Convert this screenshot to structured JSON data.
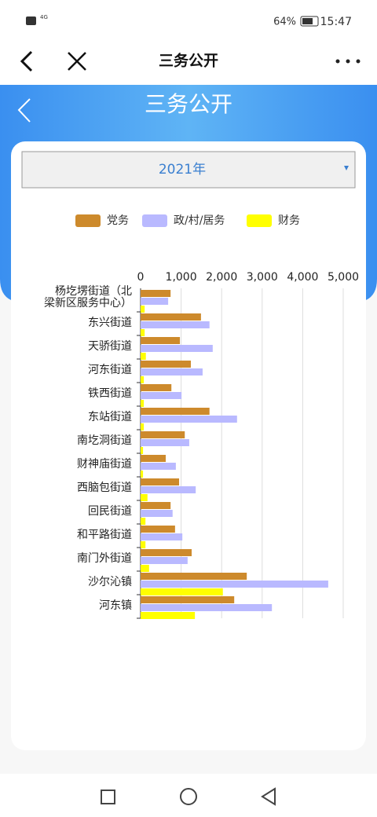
{
  "status_bar": {
    "network": "4G",
    "battery": "64%",
    "time": "15:47"
  },
  "nav_bar": {
    "title": "三务公开"
  },
  "header": {
    "title": "三务公开"
  },
  "select": {
    "value": "2021年"
  },
  "chart_data": {
    "type": "barh",
    "categories": [
      "杨圪塄街道（北梁新区服务中心）",
      "东兴街道",
      "天骄街道",
      "河东街道",
      "铁西街道",
      "东站街道",
      "南圪洞街道",
      "财神庙街道",
      "西脑包街道",
      "回民街道",
      "和平路街道",
      "南门外街道",
      "沙尔沁镇",
      "河东镇"
    ],
    "series": [
      {
        "name": "党务",
        "color": "#cd8a2c",
        "values": [
          740,
          1490,
          970,
          1240,
          760,
          1700,
          1090,
          620,
          950,
          740,
          850,
          1260,
          2620,
          2310
        ]
      },
      {
        "name": "政/村/居务",
        "color": "#b9b9ff",
        "values": [
          680,
          1700,
          1780,
          1530,
          1010,
          2380,
          1200,
          870,
          1360,
          790,
          1030,
          1160,
          4630,
          3240
        ]
      },
      {
        "name": "财务",
        "color": "#ffff00",
        "values": [
          100,
          100,
          130,
          80,
          80,
          80,
          60,
          60,
          170,
          120,
          120,
          210,
          2030,
          1340
        ]
      }
    ],
    "xlim": [
      0,
      5000
    ],
    "xticks": [
      0,
      {
        "value": 1000,
        "label": "1,000"
      },
      {
        "value": 2000,
        "label": "2,000"
      },
      {
        "value": 3000,
        "label": "3,000"
      },
      {
        "value": 4000,
        "label": "4,000"
      },
      {
        "value": 5000,
        "label": "5,000"
      }
    ],
    "grid": true,
    "legend": "top"
  }
}
